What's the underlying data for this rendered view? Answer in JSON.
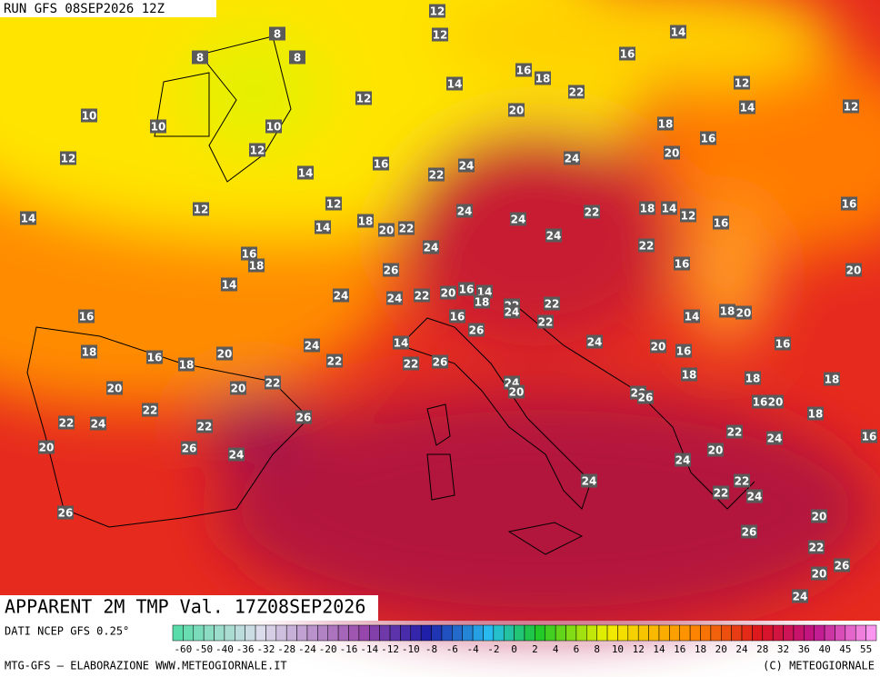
{
  "header": {
    "run": "RUN GFS 08SEP2026 12Z"
  },
  "map": {
    "title": "APPARENT 2M TMP Val. 17Z08SEP2026",
    "labels": [
      12,
      8,
      8,
      8,
      12,
      14,
      16,
      16,
      18,
      14,
      22,
      12,
      12,
      10,
      10,
      10,
      20,
      14,
      12,
      18,
      16,
      12,
      12,
      20,
      16,
      24,
      24,
      14,
      22,
      12,
      12,
      14,
      24,
      24,
      22,
      18,
      14,
      12,
      16,
      16,
      18,
      14,
      20,
      22,
      24,
      24,
      22,
      16,
      18,
      26,
      16,
      20,
      14,
      24,
      24,
      22,
      20,
      16,
      14,
      18,
      22,
      22,
      16,
      16,
      24,
      22,
      14,
      18,
      20,
      26,
      18,
      14,
      24,
      24,
      20,
      16,
      16,
      16,
      18,
      20,
      22,
      22,
      26,
      18,
      18,
      18,
      20,
      20,
      22,
      24,
      20,
      20,
      26,
      16,
      20,
      22,
      26,
      18,
      22,
      24,
      22,
      22,
      24,
      16,
      20,
      26,
      24,
      20,
      24,
      22,
      24,
      22,
      24,
      26,
      20,
      26,
      22,
      26,
      20,
      24
    ]
  },
  "scale": {
    "source": "DATI NCEP GFS 0.25°",
    "ticks": [
      -60,
      -50,
      -40,
      -36,
      -32,
      -28,
      -24,
      -20,
      -16,
      -14,
      -12,
      -10,
      -8,
      -6,
      -4,
      -2,
      0,
      2,
      4,
      6,
      8,
      10,
      12,
      14,
      16,
      18,
      20,
      24,
      28,
      32,
      36,
      40,
      45,
      55
    ]
  },
  "footer": {
    "credit": "MTG-GFS — ELABORAZIONE WWW.METEOGIORNALE.IT",
    "copyright": "(C) METEOGIORNALE"
  }
}
